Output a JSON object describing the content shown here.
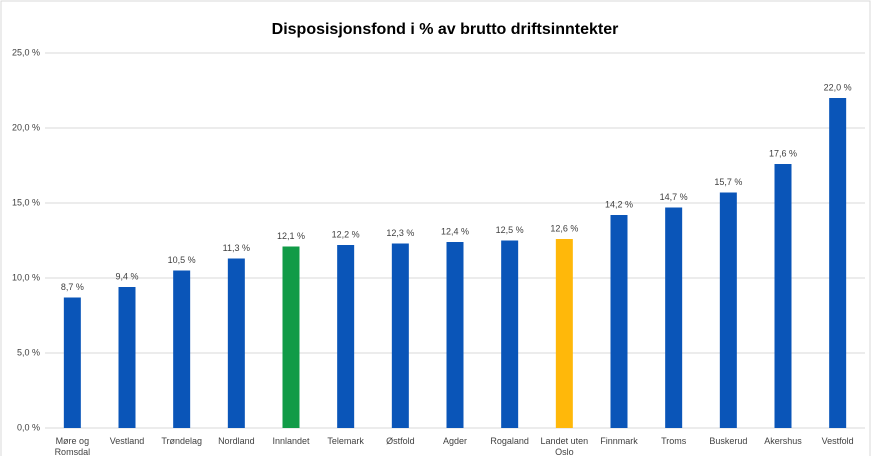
{
  "chart_data": {
    "type": "bar",
    "title": "Disposisjonsfond i % av brutto driftsinntekter",
    "categories": [
      "Møre og Romsdal",
      "Vestland",
      "Trøndelag",
      "Nordland",
      "Innlandet",
      "Telemark",
      "Østfold",
      "Agder",
      "Rogaland",
      "Landet uten Oslo",
      "Finnmark",
      "Troms",
      "Buskerud",
      "Akershus",
      "Vestfold"
    ],
    "values": [
      8.7,
      9.4,
      10.5,
      11.3,
      12.1,
      12.2,
      12.3,
      12.4,
      12.5,
      12.6,
      14.2,
      14.7,
      15.7,
      17.6,
      22.0
    ],
    "value_labels": [
      "8,7 %",
      "9,4 %",
      "10,5 %",
      "11,3 %",
      "12,1 %",
      "12,2 %",
      "12,3 %",
      "12,4 %",
      "12,5 %",
      "12,6 %",
      "14,2 %",
      "14,7 %",
      "15,7 %",
      "17,6 %",
      "22,0 %"
    ],
    "colors": [
      "#0a55b8",
      "#0a55b8",
      "#0a55b8",
      "#0a55b8",
      "#119b47",
      "#0a55b8",
      "#0a55b8",
      "#0a55b8",
      "#0a55b8",
      "#ffb80a",
      "#0a55b8",
      "#0a55b8",
      "#0a55b8",
      "#0a55b8",
      "#0a55b8"
    ],
    "ylim": [
      0,
      25
    ],
    "yticks": [
      {
        "value": 0,
        "label": "0,0 %"
      },
      {
        "value": 5,
        "label": "5,0 %"
      },
      {
        "value": 10,
        "label": "10,0 %"
      },
      {
        "value": 15,
        "label": "15,0 %"
      },
      {
        "value": 20,
        "label": "20,0 %"
      },
      {
        "value": 25,
        "label": "25,0 %"
      }
    ],
    "grid": true
  }
}
